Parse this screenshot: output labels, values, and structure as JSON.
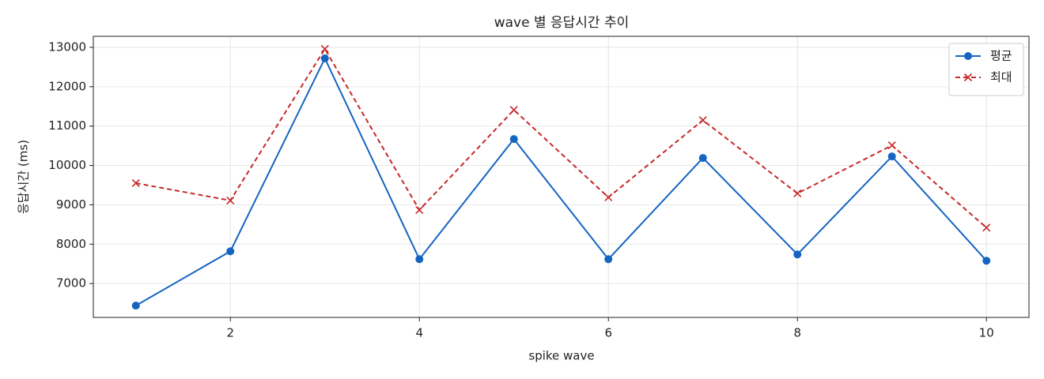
{
  "chart_data": {
    "type": "line",
    "title": "wave 별 응답시간 추이",
    "xlabel": "spike wave",
    "ylabel": "응답시간 (ms)",
    "x": [
      1,
      2,
      3,
      4,
      5,
      6,
      7,
      8,
      9,
      10
    ],
    "series": [
      {
        "name": "평균",
        "color": "#1565c0",
        "marker": "o",
        "linestyle": "solid",
        "values": [
          6440,
          7820,
          12720,
          7620,
          10670,
          7620,
          10190,
          7740,
          10230,
          7580
        ]
      },
      {
        "name": "최대",
        "color": "#c62828",
        "marker": "x",
        "linestyle": "dashed",
        "values": [
          9550,
          9110,
          12960,
          8870,
          11410,
          9190,
          11150,
          9290,
          10510,
          8420
        ]
      }
    ],
    "xlim": [
      0.55,
      10.45
    ],
    "xticks": [
      2,
      4,
      6,
      8,
      10
    ],
    "ylim": [
      6140,
      13280
    ],
    "yticks": [
      7000,
      8000,
      9000,
      10000,
      11000,
      12000,
      13000
    ],
    "grid": true,
    "legend": "upper right"
  }
}
